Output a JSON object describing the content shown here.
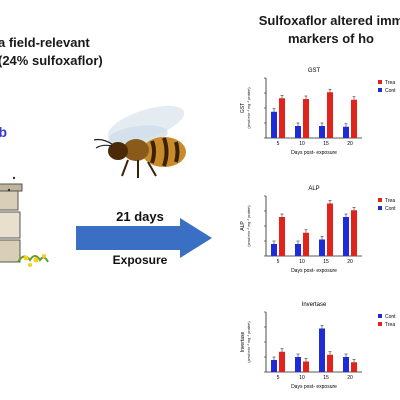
{
  "left": {
    "title_line1": "a field-relevant",
    "title_line2": "(24% sulfoxaflor)",
    "subtitle": "ob"
  },
  "right": {
    "title_line1": "Sulfoxaflor altered imm",
    "title_line2": "markers of ho"
  },
  "arrow": {
    "days_label": "21 days",
    "exposure_label": "Exposure",
    "color": "#3a6fc4"
  },
  "colors": {
    "treated": "#e0241b",
    "control": "#1f2bd6"
  },
  "chart_data": [
    {
      "type": "bar",
      "title": "GST",
      "ylabel": "GST",
      "ylabel_unit": "(pmol min⁻¹ mg⁻¹ protein)",
      "xlabel": "Days post- exposure",
      "categories": [
        "5",
        "10",
        "15",
        "20"
      ],
      "ylim": [
        0,
        4
      ],
      "series": [
        {
          "name": "Trea",
          "values": [
            2.65,
            2.6,
            3.05,
            2.55
          ]
        },
        {
          "name": "Cont",
          "values": [
            1.75,
            0.8,
            0.8,
            0.75
          ]
        }
      ]
    },
    {
      "type": "bar",
      "title": "ALP",
      "ylabel": "ALP",
      "ylabel_unit": "(pmol min⁻¹ mg⁻¹ protein)",
      "xlabel": "Days post- exposure",
      "categories": [
        "5",
        "10",
        "15",
        "20"
      ],
      "ylim": [
        0,
        4
      ],
      "series": [
        {
          "name": "Trea",
          "values": [
            2.6,
            1.55,
            3.5,
            3.05
          ]
        },
        {
          "name": "Cont",
          "values": [
            0.8,
            0.8,
            1.1,
            2.6
          ]
        }
      ]
    },
    {
      "type": "bar",
      "title": "Invertase",
      "ylabel": "Invertase",
      "ylabel_unit": "(pmol min⁻¹ mg⁻¹ protein)",
      "xlabel": "Days post- exposure",
      "categories": [
        "5",
        "10",
        "15",
        "20"
      ],
      "ylim": [
        0,
        4
      ],
      "series": [
        {
          "name": "Cont",
          "values": [
            0.8,
            1.0,
            2.9,
            1.0
          ]
        },
        {
          "name": "Trea",
          "values": [
            1.35,
            0.7,
            1.15,
            0.65
          ]
        }
      ]
    }
  ]
}
